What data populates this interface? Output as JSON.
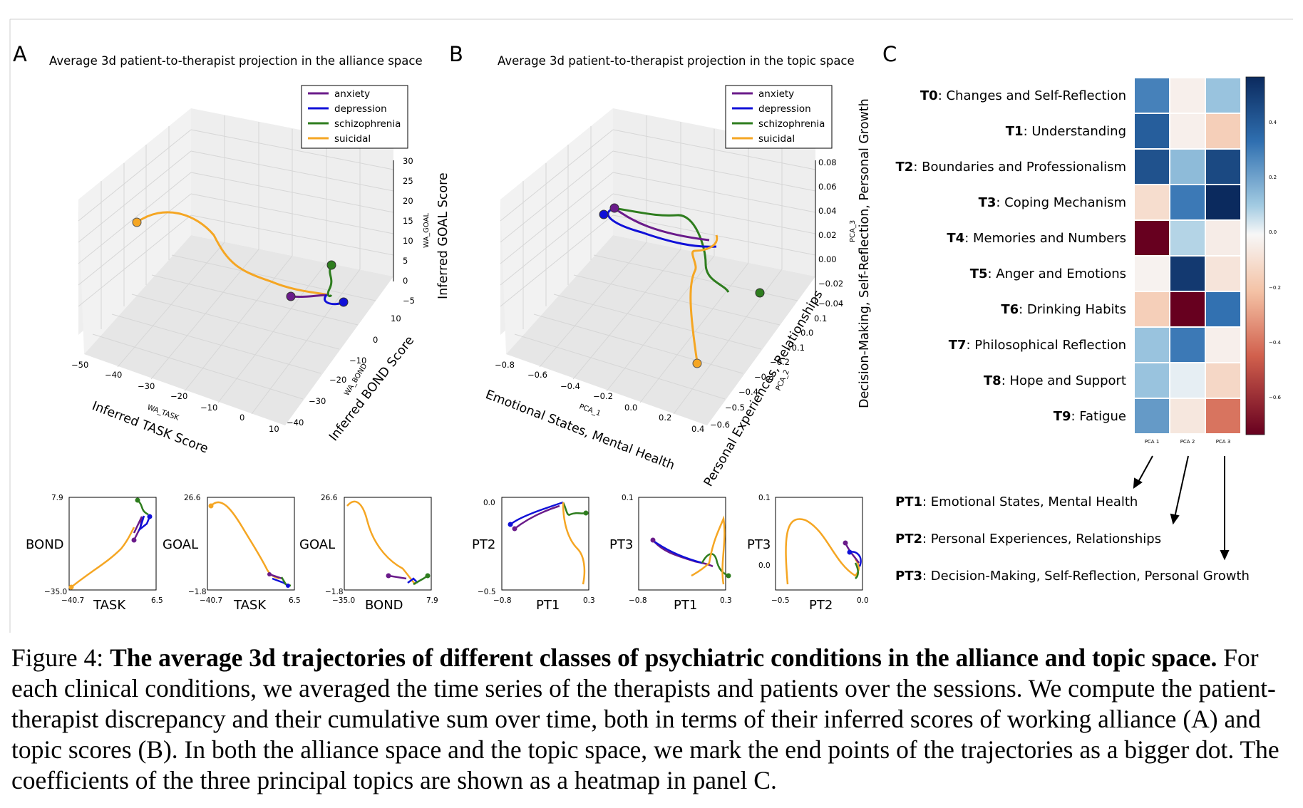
{
  "panels": {
    "A": {
      "letter": "A",
      "title": "Average 3d patient-to-therapist projection in the alliance space",
      "axis_x_small": "WA_TASK",
      "axis_x_label": "Inferred TASK Score",
      "axis_y_small": "WA_BOND",
      "axis_y_label": "Inferred BOND Score",
      "axis_z_small": "WA_GOAL",
      "axis_z_label": "Inferred GOAL Score",
      "x_ticks": [
        "−50",
        "−40",
        "−30",
        "−20",
        "−10",
        "0",
        "10"
      ],
      "y_ticks": [
        "10",
        "0",
        "−10",
        "−20",
        "−30",
        "−40"
      ],
      "z_ticks": [
        "30",
        "25",
        "20",
        "15",
        "10",
        "5",
        "0",
        "−5"
      ]
    },
    "B": {
      "letter": "B",
      "title": "Average 3d patient-to-therapist projection in the topic space",
      "axis_x_small": "PCA_1",
      "axis_x_label": "Emotional States, Mental Health",
      "axis_y_small": "PCA_2",
      "axis_y_label": "Personal Experiences, Relationships",
      "axis_z_small": "PCA_3",
      "axis_z_label": "Decision-Making, Self-Reflection, Personal Growth",
      "x_ticks": [
        "−0.8",
        "−0.6",
        "−0.4",
        "−0.2",
        "0.0",
        "0.2",
        "0.4"
      ],
      "y_ticks": [
        "0.1",
        "0.0",
        "−0.1",
        "−0.2",
        "−0.3",
        "−0.4",
        "−0.5",
        "−0.6"
      ],
      "z_ticks": [
        "0.08",
        "0.06",
        "0.04",
        "0.02",
        "0.00",
        "−0.02",
        "−0.04"
      ]
    },
    "C": {
      "letter": "C",
      "heatmap_columns": [
        "PCA 1",
        "PCA 2",
        "PCA 3"
      ],
      "colorbar_ticks": [
        "0.4",
        "0.2",
        "0.0",
        "−0.2",
        "−0.4",
        "−0.6"
      ],
      "topics": [
        {
          "code": "T0",
          "name": ": Changes and Self-Reflection"
        },
        {
          "code": "T1",
          "name": ": Understanding"
        },
        {
          "code": "T2",
          "name": ": Boundaries and Professionalism"
        },
        {
          "code": "T3",
          "name": ": Coping Mechanism"
        },
        {
          "code": "T4",
          "name": ": Memories and Numbers"
        },
        {
          "code": "T5",
          "name": ": Anger and Emotions"
        },
        {
          "code": "T6",
          "name": ": Drinking Habits"
        },
        {
          "code": "T7",
          "name": ": Philosophical Reflection"
        },
        {
          "code": "T8",
          "name": ": Hope and Support"
        },
        {
          "code": "T9",
          "name": ": Fatigue"
        }
      ],
      "principal_topics": [
        {
          "code": "PT1",
          "name": ": Emotional States, Mental Health"
        },
        {
          "code": "PT2",
          "name": ": Personal Experiences, Relationships"
        },
        {
          "code": "PT3",
          "name": ": Decision-Making, Self-Reflection, Personal Growth"
        }
      ]
    }
  },
  "legend": [
    "anxiety",
    "depression",
    "schizophrenia",
    "suicidal"
  ],
  "colors": {
    "anxiety": "#6a1b8a",
    "depression": "#1010d8",
    "schizophrenia": "#2e7d1e",
    "suicidal": "#f5a623",
    "pane": "#ececec",
    "grid": "#d4d4d4"
  },
  "small_plots": [
    {
      "ylabel": "BOND",
      "xlabel": "TASK",
      "ymax": "7.9",
      "ymin": "−35.0",
      "xmin": "−40.7",
      "xmax": "6.5"
    },
    {
      "ylabel": "GOAL",
      "xlabel": "TASK",
      "ymax": "26.6",
      "ymin": "−1.8",
      "xmin": "−40.7",
      "xmax": "6.5"
    },
    {
      "ylabel": "GOAL",
      "xlabel": "BOND",
      "ymax": "26.6",
      "ymin": "−1.8",
      "xmin": "−35.0",
      "xmax": "7.9"
    },
    {
      "ylabel": "PT2",
      "xlabel": "PT1",
      "ymax": "0.0",
      "ymin": "−0.5",
      "xmin": "−0.8",
      "xmax": "0.3"
    },
    {
      "ylabel": "PT3",
      "xlabel": "PT1",
      "ymax": "0.1",
      "ymin": "",
      "xmin": "−0.8",
      "xmax": "0.3"
    },
    {
      "ylabel": "PT3",
      "xlabel": "PT2",
      "ymax": "0.1",
      "ymin": "0.0",
      "xmin": "−0.5",
      "xmax": "0.0"
    }
  ],
  "chart_data": {
    "type": "heatmap",
    "rows": [
      "T0",
      "T1",
      "T2",
      "T3",
      "T4",
      "T5",
      "T6",
      "T7",
      "T8",
      "T9"
    ],
    "columns": [
      "PCA 1",
      "PCA 2",
      "PCA 3"
    ],
    "values": [
      [
        0.28,
        -0.03,
        0.12
      ],
      [
        0.38,
        -0.03,
        -0.15
      ],
      [
        0.42,
        0.14,
        0.45
      ],
      [
        -0.1,
        0.3,
        0.55
      ],
      [
        -0.7,
        0.08,
        -0.04
      ],
      [
        -0.02,
        0.5,
        -0.07
      ],
      [
        -0.15,
        -0.7,
        0.32
      ],
      [
        0.12,
        0.3,
        -0.03
      ],
      [
        0.12,
        0.02,
        -0.12
      ],
      [
        0.22,
        -0.06,
        -0.38
      ]
    ],
    "colorbar_range": [
      -0.7,
      0.55
    ]
  },
  "caption": {
    "label": "Figure 4:  ",
    "bold": "The average 3d trajectories of different classes of psychiatric conditions in the alliance and topic space.",
    "text": " For each clinical conditions, we averaged the time series of the therapists and patients over the sessions. We compute the patient-therapist discrepancy and their cumulative sum over time, both in terms of their inferred scores of working alliance (A) and topic scores (B). In both the alliance space and the topic space, we mark the end points of the trajectories as a bigger dot. The coefficients of the three principal topics are shown as a heatmap in panel C."
  }
}
